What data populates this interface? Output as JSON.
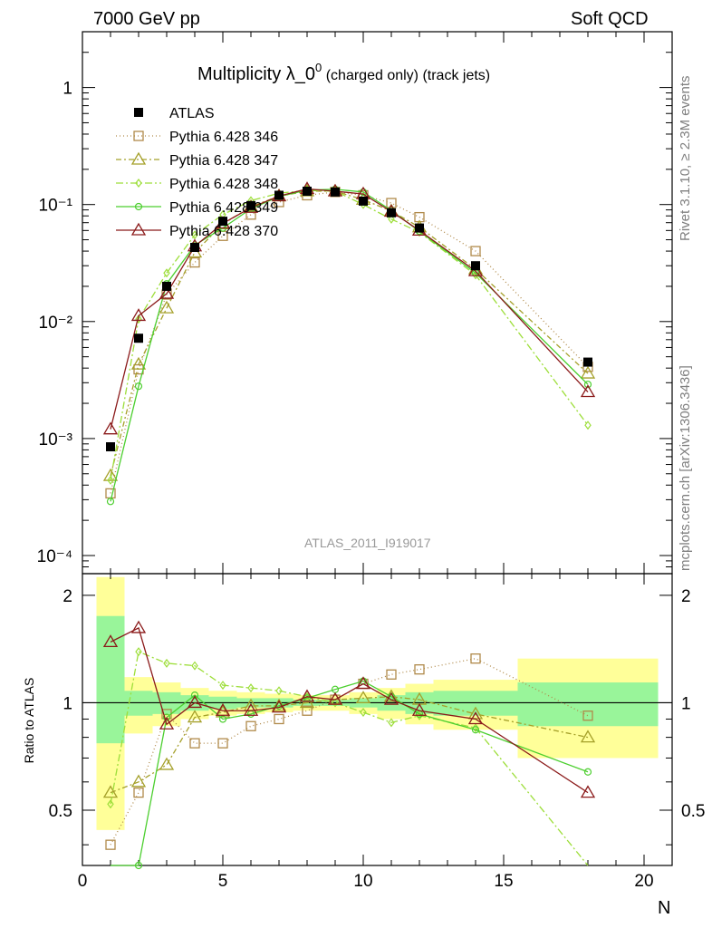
{
  "header": {
    "left": "7000 GeV pp",
    "right": "Soft QCD"
  },
  "side_labels": {
    "top": "Rivet 3.1.10, ≥ 2.3M events",
    "bottom": "mcplots.cern.ch [arXiv:1306.3436]"
  },
  "chart_data": {
    "type": "line",
    "title_main": "Multiplicity λ_0",
    "title_sup": "0",
    "title_suffix": " (charged only) (track jets)",
    "analysis_label": "ATLAS_2011_I919017",
    "xlabel": "N",
    "ylabel_ratio": "Ratio to ATLAS",
    "xlim": [
      0,
      21
    ],
    "ylim": [
      7e-05,
      3
    ],
    "yscale": "log",
    "ratio_ylim": [
      0.35,
      2.3
    ],
    "x_ticks": [
      "0",
      "5",
      "10",
      "15",
      "20"
    ],
    "y_ticks": [
      "10⁻⁴",
      "10⁻³",
      "10⁻²",
      "10⁻¹",
      "1"
    ],
    "ratio_ticks": [
      "0.5",
      "1",
      "2"
    ],
    "legend": [
      "ATLAS",
      "Pythia 6.428 346",
      "Pythia 6.428 347",
      "Pythia 6.428 348",
      "Pythia 6.428 349",
      "Pythia 6.428 370"
    ],
    "x": [
      1,
      2,
      3,
      4,
      5,
      6,
      7,
      8,
      9,
      10,
      11,
      12,
      14,
      18
    ],
    "bin_edges": [
      [
        0.5,
        1.5
      ],
      [
        1.5,
        2.5
      ],
      [
        2.5,
        3.5
      ],
      [
        3.5,
        4.5
      ],
      [
        4.5,
        5.5
      ],
      [
        5.5,
        6.5
      ],
      [
        6.5,
        7.5
      ],
      [
        7.5,
        8.5
      ],
      [
        8.5,
        9.5
      ],
      [
        9.5,
        10.5
      ],
      [
        10.5,
        11.5
      ],
      [
        11.5,
        12.5
      ],
      [
        12.5,
        15.5
      ],
      [
        15.5,
        20.5
      ]
    ],
    "reference": {
      "name": "ATLAS",
      "values": [
        0.00085,
        0.0072,
        0.02,
        0.043,
        0.072,
        0.098,
        0.12,
        0.13,
        0.128,
        0.107,
        0.085,
        0.063,
        0.03,
        0.0045
      ],
      "band_inner": [
        [
          0.77,
          1.75
        ],
        [
          0.92,
          1.08
        ],
        [
          0.93,
          1.07
        ],
        [
          0.95,
          1.05
        ],
        [
          0.96,
          1.04
        ],
        [
          0.97,
          1.03
        ],
        [
          0.97,
          1.03
        ],
        [
          0.98,
          1.02
        ],
        [
          0.98,
          1.02
        ],
        [
          0.97,
          1.03
        ],
        [
          0.95,
          1.05
        ],
        [
          0.93,
          1.07
        ],
        [
          0.92,
          1.08
        ],
        [
          0.86,
          1.14
        ]
      ],
      "band_outer": [
        [
          0.44,
          2.25
        ],
        [
          0.82,
          1.18
        ],
        [
          0.86,
          1.14
        ],
        [
          0.9,
          1.1
        ],
        [
          0.92,
          1.08
        ],
        [
          0.93,
          1.07
        ],
        [
          0.94,
          1.06
        ],
        [
          0.95,
          1.05
        ],
        [
          0.95,
          1.05
        ],
        [
          0.93,
          1.07
        ],
        [
          0.9,
          1.1
        ],
        [
          0.87,
          1.13
        ],
        [
          0.84,
          1.16
        ],
        [
          0.7,
          1.33
        ]
      ]
    },
    "series": [
      {
        "name": "Pythia 6.428 346",
        "color": "#b08a4a",
        "marker": "square",
        "dash": "1,3",
        "values": [
          0.00034,
          0.0039,
          0.017,
          0.032,
          0.054,
          0.082,
          0.105,
          0.12,
          0.128,
          0.12,
          0.103,
          0.078,
          0.04,
          0.0041
        ],
        "ratio": [
          0.4,
          0.56,
          0.93,
          0.77,
          0.77,
          0.86,
          0.9,
          0.95,
          1.02,
          1.13,
          1.2,
          1.24,
          1.33,
          0.92
        ]
      },
      {
        "name": "Pythia 6.428 347",
        "color": "#a5a02a",
        "marker": "triangle",
        "dash": "6,3,2,3",
        "values": [
          0.00048,
          0.0043,
          0.013,
          0.039,
          0.068,
          0.096,
          0.118,
          0.13,
          0.13,
          0.11,
          0.088,
          0.064,
          0.028,
          0.0036
        ],
        "ratio": [
          0.56,
          0.6,
          0.67,
          0.91,
          0.94,
          0.98,
          0.98,
          1.0,
          1.02,
          1.03,
          1.04,
          1.02,
          0.93,
          0.8
        ]
      },
      {
        "name": "Pythia 6.428 348",
        "color": "#9dde3a",
        "marker": "diamond",
        "dash": "8,3,2,3",
        "values": [
          0.00044,
          0.0105,
          0.026,
          0.055,
          0.082,
          0.108,
          0.125,
          0.132,
          0.13,
          0.1,
          0.075,
          0.058,
          0.025,
          0.0013
        ],
        "ratio": [
          0.52,
          1.39,
          1.29,
          1.27,
          1.12,
          1.1,
          1.08,
          1.04,
          1.0,
          0.94,
          0.88,
          0.92,
          0.85,
          0.28
        ]
      },
      {
        "name": "Pythia 6.428 349",
        "color": "#4ccf2f",
        "marker": "circle",
        "dash": "",
        "values": [
          0.00029,
          0.0028,
          0.021,
          0.045,
          0.063,
          0.092,
          0.117,
          0.133,
          0.135,
          0.128,
          0.089,
          0.059,
          0.026,
          0.0029
        ],
        "ratio": [
          0.25,
          0.35,
          0.91,
          1.05,
          0.9,
          0.93,
          0.98,
          1.03,
          1.09,
          1.15,
          1.04,
          0.93,
          0.84,
          0.64
        ]
      },
      {
        "name": "Pythia 6.428 370",
        "color": "#8b1a1a",
        "marker": "triangle",
        "dash": "",
        "values": [
          0.0012,
          0.0112,
          0.0173,
          0.044,
          0.069,
          0.094,
          0.118,
          0.136,
          0.13,
          0.123,
          0.087,
          0.06,
          0.027,
          0.0025
        ],
        "ratio": [
          1.48,
          1.62,
          0.87,
          1.0,
          0.95,
          0.95,
          0.97,
          1.04,
          1.02,
          1.13,
          1.02,
          0.95,
          0.9,
          0.56
        ]
      }
    ]
  }
}
